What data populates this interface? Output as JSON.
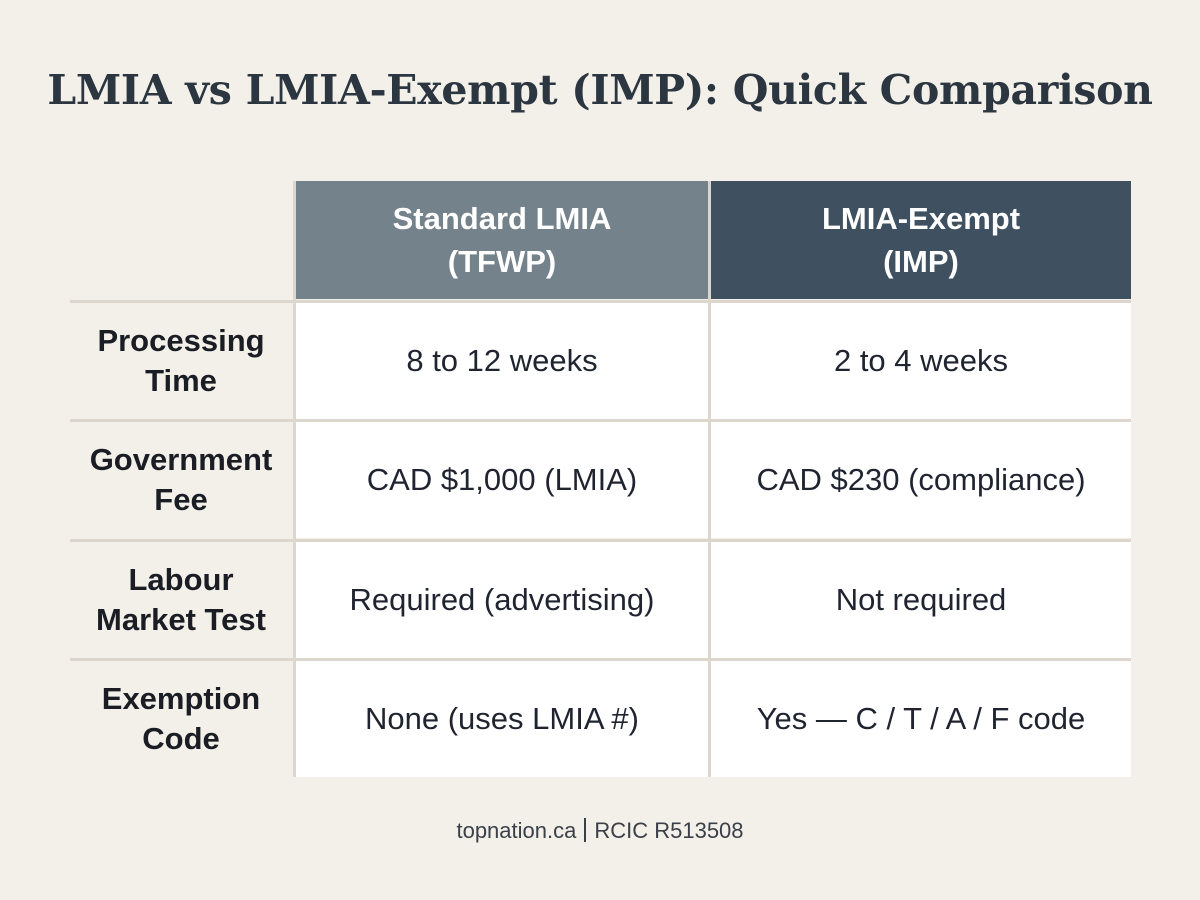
{
  "title": "LMIA vs LMIA-Exempt (IMP): Quick Comparison",
  "table": {
    "columns": [
      {
        "label": "Standard LMIA\n(TFWP)",
        "color": "#74828b"
      },
      {
        "label": "LMIA-Exempt\n(IMP)",
        "color": "#3f5160"
      }
    ],
    "rows": [
      {
        "label": "Processing\nTime",
        "values": [
          "8 to 12 weeks",
          "2 to 4 weeks"
        ]
      },
      {
        "label": "Government\nFee",
        "values": [
          "CAD $1,000 (LMIA)",
          "CAD $230 (compliance)"
        ]
      },
      {
        "label": "Labour\nMarket Test",
        "values": [
          "Required (advertising)",
          "Not required"
        ]
      },
      {
        "label": "Exemption\nCode",
        "values": [
          "None (uses LMIA #)",
          "Yes — C / T / A / F code"
        ]
      }
    ]
  },
  "footer": {
    "site": "topnation.ca",
    "license": "RCIC R513508"
  }
}
